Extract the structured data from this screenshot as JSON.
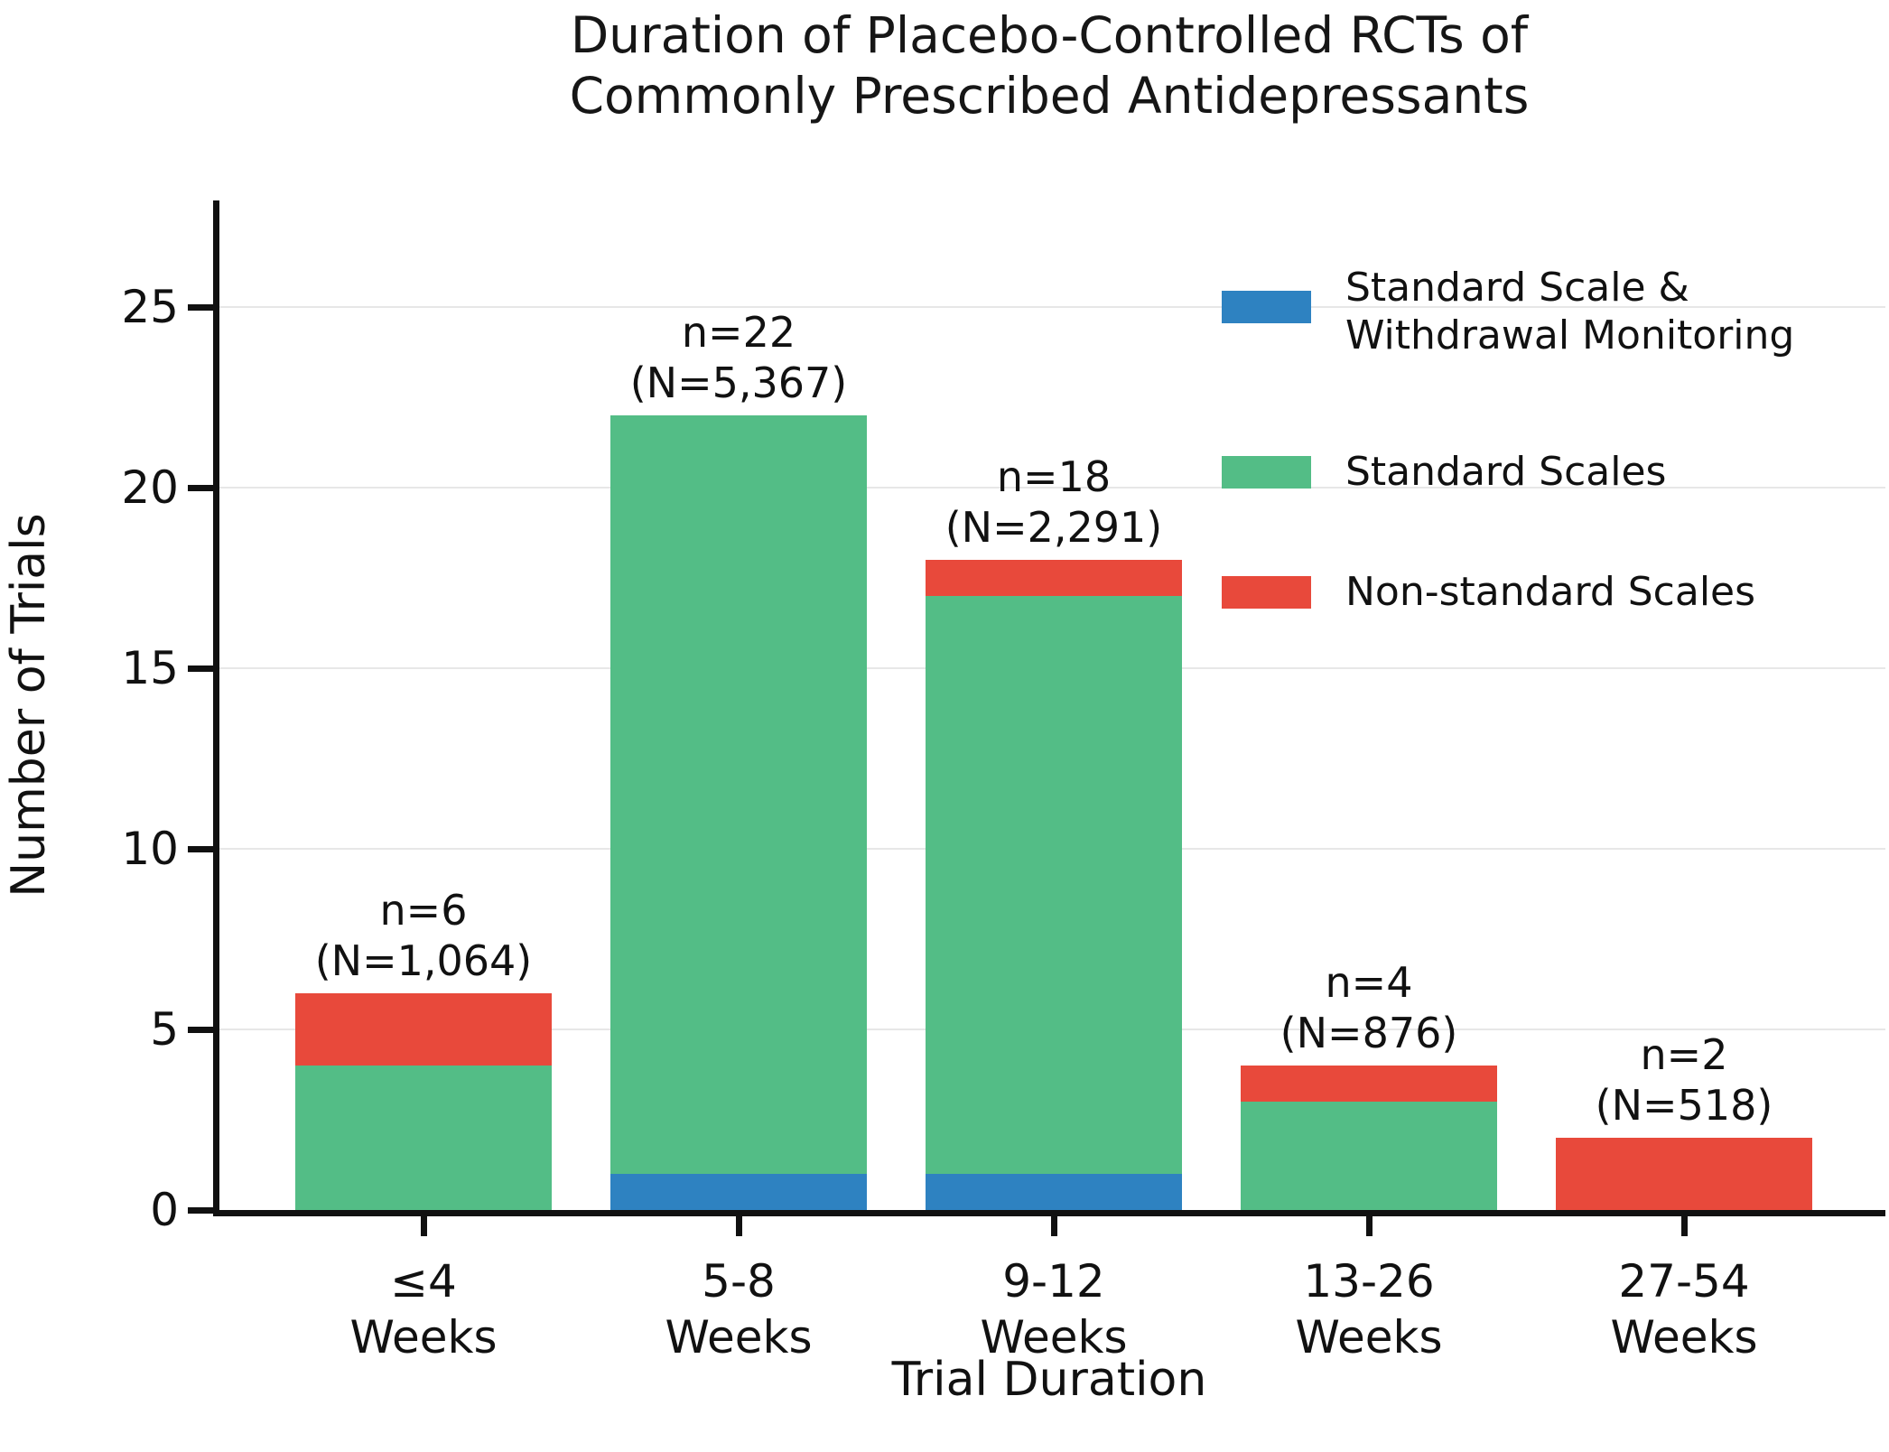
{
  "title": {
    "line1": "Duration of Placebo-Controlled RCTs of",
    "line2": "Commonly Prescribed Antidepressants"
  },
  "axes": {
    "xlabel": "Trial Duration",
    "ylabel": "Number of Trials"
  },
  "colors": {
    "blue": "#2E82C1",
    "green": "#53BD86",
    "red": "#E8493B",
    "grid": "#E7E7E7",
    "text": "#111111"
  },
  "legend": {
    "position": "upper right",
    "entries": [
      {
        "label_lines": [
          "Standard Scale &",
          "Withdrawal Monitoring"
        ],
        "color": "#2E82C1"
      },
      {
        "label_lines": [
          "Standard Scales"
        ],
        "color": "#53BD86"
      },
      {
        "label_lines": [
          "Non-standard Scales"
        ],
        "color": "#E8493B"
      }
    ]
  },
  "chart_data": {
    "type": "bar",
    "stacked": true,
    "title": "Duration of Placebo-Controlled RCTs of Commonly Prescribed Antidepressants",
    "xlabel": "Trial Duration",
    "ylabel": "Number of Trials",
    "ylim": [
      0,
      27.9
    ],
    "yticks": [
      0,
      5,
      10,
      15,
      20,
      25
    ],
    "grid": "horizontal",
    "legend_position": "upper right",
    "categories": [
      [
        "≤4",
        "Weeks"
      ],
      [
        "5-8",
        "Weeks"
      ],
      [
        "9-12",
        "Weeks"
      ],
      [
        "13-26",
        "Weeks"
      ],
      [
        "27-54",
        "Weeks"
      ]
    ],
    "series": [
      {
        "name": "Standard Scale & Withdrawal Monitoring",
        "color": "#2E82C1",
        "values": [
          0,
          1,
          1,
          0,
          0
        ]
      },
      {
        "name": "Standard Scales",
        "color": "#53BD86",
        "values": [
          4,
          21,
          16,
          3,
          0
        ]
      },
      {
        "name": "Non-standard Scales",
        "color": "#E8493B",
        "values": [
          2,
          0,
          1,
          1,
          2
        ]
      }
    ],
    "totals": [
      6,
      22,
      18,
      4,
      2
    ],
    "annotations": [
      [
        "n=6",
        "(N=1,064)"
      ],
      [
        "n=22",
        "(N=5,367)"
      ],
      [
        "n=18",
        "(N=2,291)"
      ],
      [
        "n=4",
        "(N=876)"
      ],
      [
        "n=2",
        "(N=518)"
      ]
    ]
  }
}
